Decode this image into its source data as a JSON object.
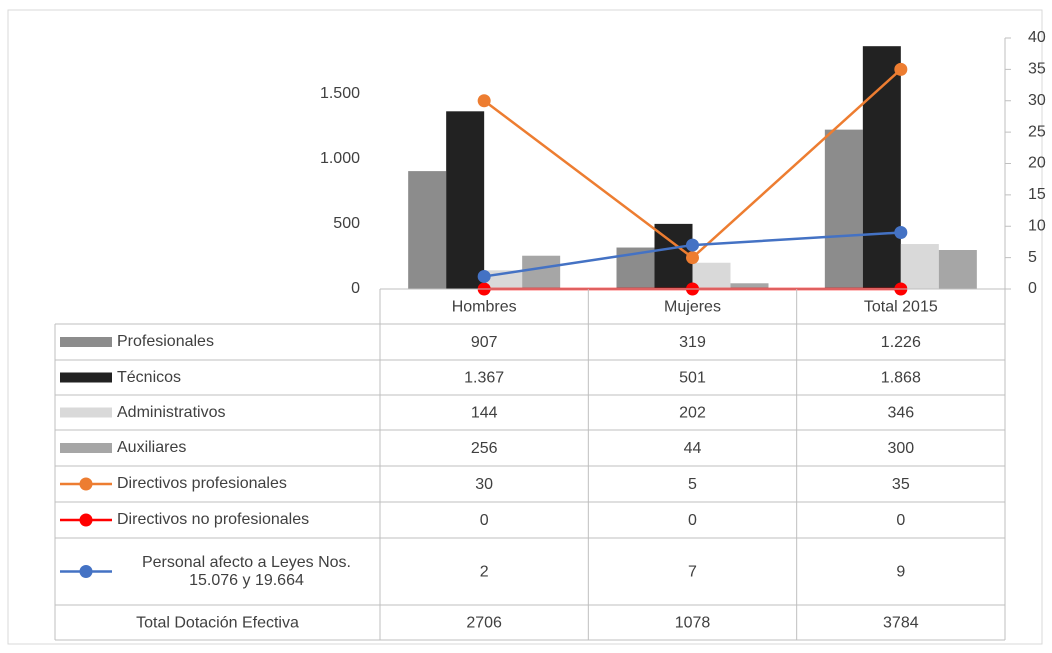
{
  "chart_data": {
    "type": "bar",
    "categories": [
      "Hombres",
      "Mujeres",
      "Total 2015"
    ],
    "ylim": [
      0,
      1931
    ],
    "yticks": [
      0,
      500,
      {
        "value": 1000,
        "label": "1.000"
      },
      {
        "value": 1500,
        "label": "1.500"
      }
    ],
    "y2lim": [
      0,
      40
    ],
    "y2ticks": [
      0,
      5,
      10,
      15,
      20,
      25,
      30,
      35,
      40
    ],
    "series": [
      {
        "name": "Profesionales",
        "type": "bar",
        "color": "#8c8c8c",
        "values": [
          907,
          319,
          1226
        ],
        "value_labels": [
          "907",
          "319",
          "1.226"
        ]
      },
      {
        "name": "Técnicos",
        "type": "bar",
        "color": "#222222",
        "values": [
          1367,
          501,
          1868
        ],
        "value_labels": [
          "1.367",
          "501",
          "1.868"
        ]
      },
      {
        "name": "Administrativos",
        "type": "bar",
        "color": "#d9d9d9",
        "values": [
          144,
          202,
          346
        ]
      },
      {
        "name": "Auxiliares",
        "type": "bar",
        "color": "#a6a6a6",
        "values": [
          256,
          44,
          300
        ]
      },
      {
        "name": "Directivos profesionales",
        "type": "line",
        "axis": "y2",
        "color": "#ed7d31",
        "values": [
          30,
          5,
          35
        ]
      },
      {
        "name": "Directivos no profesionales",
        "type": "line",
        "axis": "y2",
        "color": "#ff0000",
        "values": [
          0,
          0,
          0
        ]
      },
      {
        "name": "Personal afecto a Leyes Nos. 15.076 y 19.664",
        "type": "line",
        "axis": "y2",
        "color": "#4472c4",
        "values": [
          2,
          7,
          9
        ]
      }
    ],
    "total_row": {
      "label": "Total Dotación Efectiva",
      "values": [
        2706,
        1078,
        3784
      ]
    }
  }
}
